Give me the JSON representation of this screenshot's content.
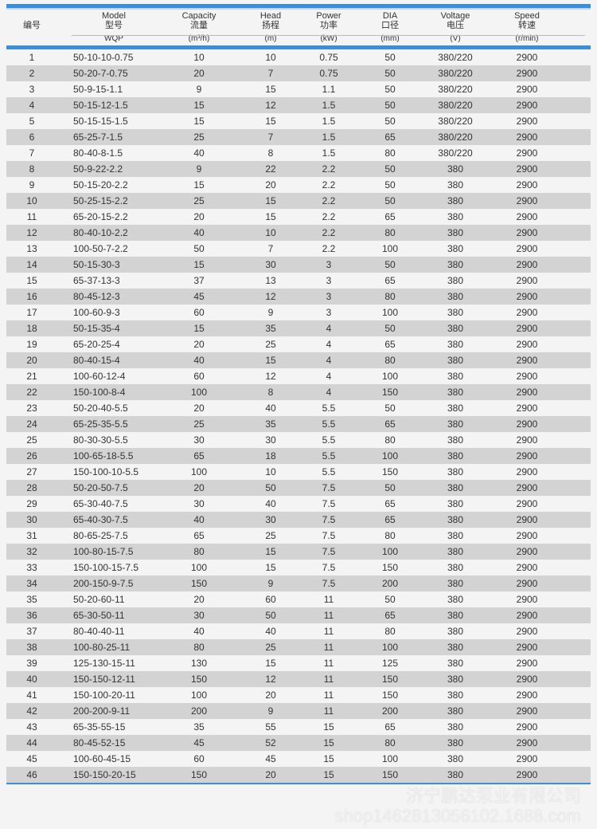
{
  "header": {
    "no": "编号",
    "model": {
      "en": "Model",
      "cn": "型号",
      "sub": "WQP"
    },
    "capacity": {
      "en": "Capacity",
      "cn": "流量",
      "sub": "(m³/h)"
    },
    "head": {
      "en": "Head",
      "cn": "扬程",
      "sub": "(m)"
    },
    "power": {
      "en": "Power",
      "cn": "功率",
      "sub": "(kW)"
    },
    "dia": {
      "en": "DIA",
      "cn": "口径",
      "sub": "(mm)"
    },
    "voltage": {
      "en": "Voltage",
      "cn": "电压",
      "sub": "(V)"
    },
    "speed": {
      "en": "Speed",
      "cn": "转速",
      "sub": "(r/min)"
    }
  },
  "rows": [
    [
      "1",
      "50-10-10-0.75",
      "10",
      "10",
      "0.75",
      "50",
      "380/220",
      "2900"
    ],
    [
      "2",
      "50-20-7-0.75",
      "20",
      "7",
      "0.75",
      "50",
      "380/220",
      "2900"
    ],
    [
      "3",
      "50-9-15-1.1",
      "9",
      "15",
      "1.1",
      "50",
      "380/220",
      "2900"
    ],
    [
      "4",
      "50-15-12-1.5",
      "15",
      "12",
      "1.5",
      "50",
      "380/220",
      "2900"
    ],
    [
      "5",
      "50-15-15-1.5",
      "15",
      "15",
      "1.5",
      "50",
      "380/220",
      "2900"
    ],
    [
      "6",
      "65-25-7-1.5",
      "25",
      "7",
      "1.5",
      "65",
      "380/220",
      "2900"
    ],
    [
      "7",
      "80-40-8-1.5",
      "40",
      "8",
      "1.5",
      "80",
      "380/220",
      "2900"
    ],
    [
      "8",
      "50-9-22-2.2",
      "9",
      "22",
      "2.2",
      "50",
      "380",
      "2900"
    ],
    [
      "9",
      "50-15-20-2.2",
      "15",
      "20",
      "2.2",
      "50",
      "380",
      "2900"
    ],
    [
      "10",
      "50-25-15-2.2",
      "25",
      "15",
      "2.2",
      "50",
      "380",
      "2900"
    ],
    [
      "11",
      "65-20-15-2.2",
      "20",
      "15",
      "2.2",
      "65",
      "380",
      "2900"
    ],
    [
      "12",
      "80-40-10-2.2",
      "40",
      "10",
      "2.2",
      "80",
      "380",
      "2900"
    ],
    [
      "13",
      "100-50-7-2.2",
      "50",
      "7",
      "2.2",
      "100",
      "380",
      "2900"
    ],
    [
      "14",
      "50-15-30-3",
      "15",
      "30",
      "3",
      "50",
      "380",
      "2900"
    ],
    [
      "15",
      "65-37-13-3",
      "37",
      "13",
      "3",
      "65",
      "380",
      "2900"
    ],
    [
      "16",
      "80-45-12-3",
      "45",
      "12",
      "3",
      "80",
      "380",
      "2900"
    ],
    [
      "17",
      "100-60-9-3",
      "60",
      "9",
      "3",
      "100",
      "380",
      "2900"
    ],
    [
      "18",
      "50-15-35-4",
      "15",
      "35",
      "4",
      "50",
      "380",
      "2900"
    ],
    [
      "19",
      "65-20-25-4",
      "20",
      "25",
      "4",
      "65",
      "380",
      "2900"
    ],
    [
      "20",
      "80-40-15-4",
      "40",
      "15",
      "4",
      "80",
      "380",
      "2900"
    ],
    [
      "21",
      "100-60-12-4",
      "60",
      "12",
      "4",
      "100",
      "380",
      "2900"
    ],
    [
      "22",
      "150-100-8-4",
      "100",
      "8",
      "4",
      "150",
      "380",
      "2900"
    ],
    [
      "23",
      "50-20-40-5.5",
      "20",
      "40",
      "5.5",
      "50",
      "380",
      "2900"
    ],
    [
      "24",
      "65-25-35-5.5",
      "25",
      "35",
      "5.5",
      "65",
      "380",
      "2900"
    ],
    [
      "25",
      "80-30-30-5.5",
      "30",
      "30",
      "5.5",
      "80",
      "380",
      "2900"
    ],
    [
      "26",
      "100-65-18-5.5",
      "65",
      "18",
      "5.5",
      "100",
      "380",
      "2900"
    ],
    [
      "27",
      "150-100-10-5.5",
      "100",
      "10",
      "5.5",
      "150",
      "380",
      "2900"
    ],
    [
      "28",
      "50-20-50-7.5",
      "20",
      "50",
      "7.5",
      "50",
      "380",
      "2900"
    ],
    [
      "29",
      "65-30-40-7.5",
      "30",
      "40",
      "7.5",
      "65",
      "380",
      "2900"
    ],
    [
      "30",
      "65-40-30-7.5",
      "40",
      "30",
      "7.5",
      "65",
      "380",
      "2900"
    ],
    [
      "31",
      "80-65-25-7.5",
      "65",
      "25",
      "7.5",
      "80",
      "380",
      "2900"
    ],
    [
      "32",
      "100-80-15-7.5",
      "80",
      "15",
      "7.5",
      "100",
      "380",
      "2900"
    ],
    [
      "33",
      "150-100-15-7.5",
      "100",
      "15",
      "7.5",
      "150",
      "380",
      "2900"
    ],
    [
      "34",
      "200-150-9-7.5",
      "150",
      "9",
      "7.5",
      "200",
      "380",
      "2900"
    ],
    [
      "35",
      "50-20-60-11",
      "20",
      "60",
      "11",
      "50",
      "380",
      "2900"
    ],
    [
      "36",
      "65-30-50-11",
      "30",
      "50",
      "11",
      "65",
      "380",
      "2900"
    ],
    [
      "37",
      "80-40-40-11",
      "40",
      "40",
      "11",
      "80",
      "380",
      "2900"
    ],
    [
      "38",
      "100-80-25-11",
      "80",
      "25",
      "11",
      "100",
      "380",
      "2900"
    ],
    [
      "39",
      "125-130-15-11",
      "130",
      "15",
      "11",
      "125",
      "380",
      "2900"
    ],
    [
      "40",
      "150-150-12-11",
      "150",
      "12",
      "11",
      "150",
      "380",
      "2900"
    ],
    [
      "41",
      "150-100-20-11",
      "100",
      "20",
      "11",
      "150",
      "380",
      "2900"
    ],
    [
      "42",
      "200-200-9-11",
      "200",
      "9",
      "11",
      "200",
      "380",
      "2900"
    ],
    [
      "43",
      "65-35-55-15",
      "35",
      "55",
      "15",
      "65",
      "380",
      "2900"
    ],
    [
      "44",
      "80-45-52-15",
      "45",
      "52",
      "15",
      "80",
      "380",
      "2900"
    ],
    [
      "45",
      "100-60-45-15",
      "60",
      "45",
      "15",
      "100",
      "380",
      "2900"
    ],
    [
      "46",
      "150-150-20-15",
      "150",
      "20",
      "15",
      "150",
      "380",
      "2900"
    ]
  ],
  "watermark": {
    "company": "济宁鹏达泵业有限公司",
    "url": "shop1462813056102.1688.com"
  },
  "colors": {
    "accent": "#3a8ee0",
    "alt_row": "#d3d3d3"
  }
}
